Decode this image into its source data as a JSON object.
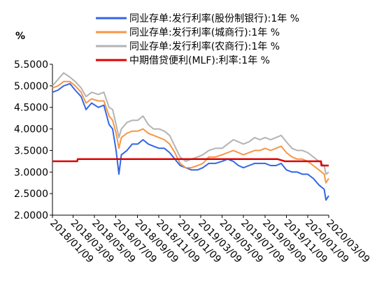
{
  "chart_data": {
    "type": "line",
    "ylabel": "%",
    "ylim": [
      2.0,
      5.5
    ],
    "y_ticks": [
      "5.5000",
      "5.0000",
      "4.5000",
      "4.0000",
      "3.5000",
      "3.0000",
      "2.5000",
      "2.0000"
    ],
    "x_ticks": [
      "2018/01/09",
      "2018/03/09",
      "2018/05/09",
      "2018/07/09",
      "2018/09/09",
      "2018/11/09",
      "2019/01/09",
      "2019/03/09",
      "2019/05/09",
      "2019/07/09",
      "2019/09/09",
      "2019/11/09",
      "2020/01/09",
      "2020/03/09"
    ],
    "legend_position": "top-right",
    "grid": false,
    "series": [
      {
        "name": "同业存单:发行利率(股份制银行):1年 %",
        "color": "#3366e6",
        "points": [
          [
            "2018/01/09",
            4.85
          ],
          [
            "2018/01/25",
            4.9
          ],
          [
            "2018/02/10",
            5.0
          ],
          [
            "2018/02/28",
            5.05
          ],
          [
            "2018/03/15",
            4.9
          ],
          [
            "2018/04/01",
            4.75
          ],
          [
            "2018/04/15",
            4.45
          ],
          [
            "2018/05/01",
            4.6
          ],
          [
            "2018/05/20",
            4.5
          ],
          [
            "2018/06/05",
            4.55
          ],
          [
            "2018/06/20",
            4.1
          ],
          [
            "2018/06/30",
            4.0
          ],
          [
            "2018/07/10",
            3.5
          ],
          [
            "2018/07/18",
            2.95
          ],
          [
            "2018/07/25",
            3.4
          ],
          [
            "2018/08/10",
            3.5
          ],
          [
            "2018/08/25",
            3.65
          ],
          [
            "2018/09/10",
            3.65
          ],
          [
            "2018/09/25",
            3.75
          ],
          [
            "2018/10/10",
            3.65
          ],
          [
            "2018/10/25",
            3.6
          ],
          [
            "2018/11/10",
            3.55
          ],
          [
            "2018/11/25",
            3.55
          ],
          [
            "2018/12/10",
            3.45
          ],
          [
            "2018/12/25",
            3.3
          ],
          [
            "2019/01/09",
            3.15
          ],
          [
            "2019/01/25",
            3.1
          ],
          [
            "2019/02/10",
            3.05
          ],
          [
            "2019/02/28",
            3.05
          ],
          [
            "2019/03/15",
            3.1
          ],
          [
            "2019/04/01",
            3.2
          ],
          [
            "2019/04/20",
            3.2
          ],
          [
            "2019/05/09",
            3.25
          ],
          [
            "2019/05/25",
            3.3
          ],
          [
            "2019/06/10",
            3.25
          ],
          [
            "2019/06/25",
            3.15
          ],
          [
            "2019/07/09",
            3.1
          ],
          [
            "2019/07/25",
            3.15
          ],
          [
            "2019/08/10",
            3.2
          ],
          [
            "2019/08/25",
            3.2
          ],
          [
            "2019/09/09",
            3.2
          ],
          [
            "2019/09/25",
            3.15
          ],
          [
            "2019/10/10",
            3.15
          ],
          [
            "2019/10/25",
            3.2
          ],
          [
            "2019/11/09",
            3.05
          ],
          [
            "2019/11/25",
            3.0
          ],
          [
            "2019/12/10",
            3.0
          ],
          [
            "2019/12/25",
            2.95
          ],
          [
            "2020/01/09",
            2.95
          ],
          [
            "2020/01/25",
            2.85
          ],
          [
            "2020/02/10",
            2.7
          ],
          [
            "2020/02/25",
            2.6
          ],
          [
            "2020/03/01",
            2.35
          ],
          [
            "2020/03/09",
            2.45
          ]
        ]
      },
      {
        "name": "同业存单:发行利率(城商行):1年 %",
        "color": "#f79646",
        "points": [
          [
            "2018/01/09",
            4.95
          ],
          [
            "2018/01/25",
            5.0
          ],
          [
            "2018/02/10",
            5.1
          ],
          [
            "2018/02/28",
            5.1
          ],
          [
            "2018/03/15",
            5.0
          ],
          [
            "2018/04/01",
            4.85
          ],
          [
            "2018/04/15",
            4.6
          ],
          [
            "2018/05/01",
            4.7
          ],
          [
            "2018/05/20",
            4.65
          ],
          [
            "2018/06/05",
            4.65
          ],
          [
            "2018/06/20",
            4.3
          ],
          [
            "2018/06/30",
            4.2
          ],
          [
            "2018/07/10",
            3.9
          ],
          [
            "2018/07/18",
            3.55
          ],
          [
            "2018/07/25",
            3.8
          ],
          [
            "2018/08/10",
            3.9
          ],
          [
            "2018/08/25",
            3.95
          ],
          [
            "2018/09/10",
            3.95
          ],
          [
            "2018/09/25",
            4.0
          ],
          [
            "2018/10/10",
            3.9
          ],
          [
            "2018/10/25",
            3.85
          ],
          [
            "2018/11/10",
            3.8
          ],
          [
            "2018/11/25",
            3.75
          ],
          [
            "2018/12/10",
            3.65
          ],
          [
            "2018/12/25",
            3.45
          ],
          [
            "2019/01/09",
            3.2
          ],
          [
            "2019/01/25",
            3.1
          ],
          [
            "2019/02/10",
            3.1
          ],
          [
            "2019/02/28",
            3.15
          ],
          [
            "2019/03/15",
            3.2
          ],
          [
            "2019/04/01",
            3.35
          ],
          [
            "2019/04/20",
            3.35
          ],
          [
            "2019/05/09",
            3.4
          ],
          [
            "2019/05/25",
            3.45
          ],
          [
            "2019/06/10",
            3.5
          ],
          [
            "2019/06/25",
            3.45
          ],
          [
            "2019/07/09",
            3.4
          ],
          [
            "2019/07/25",
            3.45
          ],
          [
            "2019/08/10",
            3.5
          ],
          [
            "2019/08/25",
            3.5
          ],
          [
            "2019/09/09",
            3.55
          ],
          [
            "2019/09/25",
            3.5
          ],
          [
            "2019/10/10",
            3.55
          ],
          [
            "2019/10/25",
            3.6
          ],
          [
            "2019/11/09",
            3.45
          ],
          [
            "2019/11/25",
            3.35
          ],
          [
            "2019/12/10",
            3.3
          ],
          [
            "2019/12/25",
            3.3
          ],
          [
            "2020/01/09",
            3.25
          ],
          [
            "2020/01/25",
            3.15
          ],
          [
            "2020/02/10",
            3.05
          ],
          [
            "2020/02/25",
            2.95
          ],
          [
            "2020/03/01",
            2.75
          ],
          [
            "2020/03/09",
            2.85
          ]
        ]
      },
      {
        "name": "同业存单:发行利率(农商行):1年 %",
        "color": "#b3b3b3",
        "points": [
          [
            "2018/01/09",
            5.0
          ],
          [
            "2018/01/25",
            5.15
          ],
          [
            "2018/02/10",
            5.3
          ],
          [
            "2018/02/28",
            5.2
          ],
          [
            "2018/03/15",
            5.1
          ],
          [
            "2018/04/01",
            4.95
          ],
          [
            "2018/04/15",
            4.75
          ],
          [
            "2018/05/01",
            4.85
          ],
          [
            "2018/05/20",
            4.8
          ],
          [
            "2018/06/05",
            4.85
          ],
          [
            "2018/06/20",
            4.5
          ],
          [
            "2018/06/30",
            4.45
          ],
          [
            "2018/07/10",
            4.1
          ],
          [
            "2018/07/18",
            3.8
          ],
          [
            "2018/07/25",
            4.0
          ],
          [
            "2018/08/10",
            4.15
          ],
          [
            "2018/08/25",
            4.2
          ],
          [
            "2018/09/10",
            4.2
          ],
          [
            "2018/09/25",
            4.3
          ],
          [
            "2018/10/10",
            4.1
          ],
          [
            "2018/10/25",
            4.0
          ],
          [
            "2018/11/10",
            4.0
          ],
          [
            "2018/11/25",
            3.95
          ],
          [
            "2018/12/10",
            3.85
          ],
          [
            "2018/12/25",
            3.6
          ],
          [
            "2019/01/09",
            3.35
          ],
          [
            "2019/01/25",
            3.25
          ],
          [
            "2019/02/10",
            3.3
          ],
          [
            "2019/02/28",
            3.35
          ],
          [
            "2019/03/15",
            3.4
          ],
          [
            "2019/04/01",
            3.5
          ],
          [
            "2019/04/20",
            3.55
          ],
          [
            "2019/05/09",
            3.55
          ],
          [
            "2019/05/25",
            3.65
          ],
          [
            "2019/06/10",
            3.75
          ],
          [
            "2019/06/25",
            3.7
          ],
          [
            "2019/07/09",
            3.65
          ],
          [
            "2019/07/25",
            3.7
          ],
          [
            "2019/08/10",
            3.8
          ],
          [
            "2019/08/25",
            3.75
          ],
          [
            "2019/09/09",
            3.8
          ],
          [
            "2019/09/25",
            3.75
          ],
          [
            "2019/10/10",
            3.8
          ],
          [
            "2019/10/25",
            3.85
          ],
          [
            "2019/11/09",
            3.7
          ],
          [
            "2019/11/25",
            3.55
          ],
          [
            "2019/12/10",
            3.5
          ],
          [
            "2019/12/25",
            3.5
          ],
          [
            "2020/01/09",
            3.45
          ],
          [
            "2020/01/25",
            3.35
          ],
          [
            "2020/02/10",
            3.25
          ],
          [
            "2020/02/25",
            3.15
          ],
          [
            "2020/03/01",
            2.95
          ],
          [
            "2020/03/09",
            3.0
          ]
        ]
      },
      {
        "name": "中期借贷便利(MLF):利率:1年 %",
        "color": "#e00000",
        "points": [
          [
            "2018/01/09",
            3.25
          ],
          [
            "2018/03/21",
            3.25
          ],
          [
            "2018/03/22",
            3.3
          ],
          [
            "2019/10/15",
            3.3
          ],
          [
            "2019/11/05",
            3.25
          ],
          [
            "2020/02/16",
            3.25
          ],
          [
            "2020/02/17",
            3.15
          ],
          [
            "2020/03/09",
            3.15
          ]
        ]
      }
    ]
  }
}
